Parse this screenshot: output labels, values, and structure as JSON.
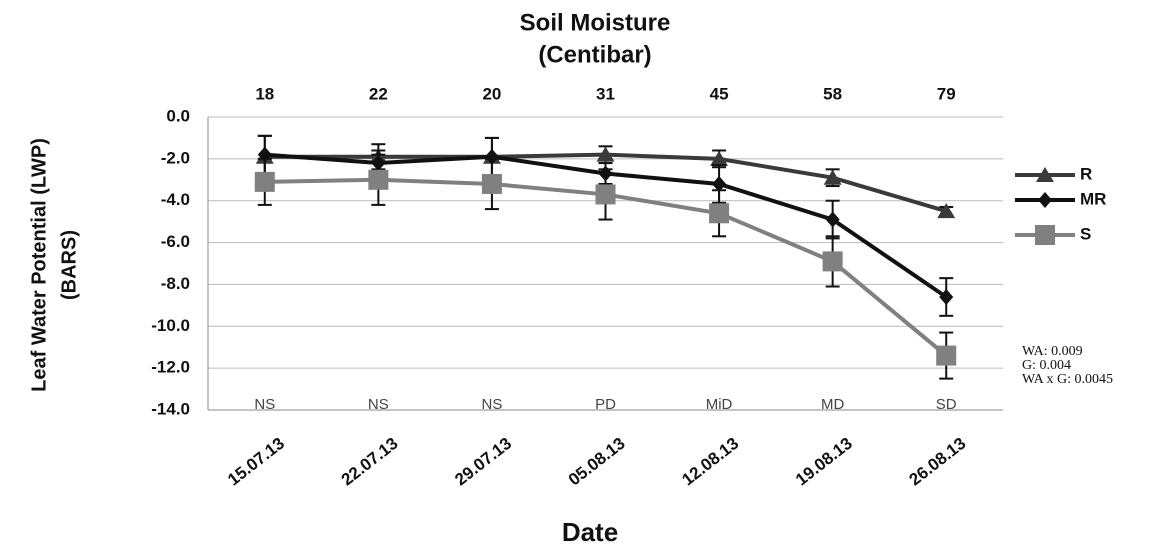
{
  "chart_data": {
    "type": "line",
    "title": "Soil Moisture",
    "subtitle": "(Centibar)",
    "x_label": "Date",
    "y_label": "Leaf Water Potential (LWP)",
    "y_label_unit": "(BARS)",
    "categories": [
      "15.07.13",
      "22.07.13",
      "29.07.13",
      "05.08.13",
      "12.08.13",
      "19.08.13",
      "26.08.13"
    ],
    "soil_moisture": [
      18,
      22,
      20,
      31,
      45,
      58,
      79
    ],
    "stages": [
      "NS",
      "NS",
      "NS",
      "PD",
      "MiD",
      "MD",
      "SD"
    ],
    "series": [
      {
        "name": "R",
        "color": "#3a3a3a",
        "marker": "triangle",
        "values": [
          -1.9,
          -1.9,
          -1.9,
          -1.8,
          -2.0,
          -2.9,
          -4.5
        ],
        "errors": [
          1.0,
          0.6,
          0.9,
          0.4,
          0.4,
          0.4,
          0.2
        ]
      },
      {
        "name": "MR",
        "color": "#111111",
        "marker": "diamond",
        "values": [
          -1.8,
          -2.2,
          -1.9,
          -2.7,
          -3.2,
          -4.9,
          -8.6
        ],
        "errors": [
          0.9,
          0.6,
          0.9,
          0.5,
          0.9,
          0.9,
          0.9
        ]
      },
      {
        "name": "S",
        "color": "#808080",
        "marker": "square",
        "values": [
          -3.1,
          -3.0,
          -3.2,
          -3.7,
          -4.6,
          -6.9,
          -11.4
        ],
        "errors": [
          1.1,
          1.2,
          1.2,
          1.2,
          1.1,
          1.2,
          1.1
        ]
      }
    ],
    "error_color": "#111111",
    "ylim": [
      -14.0,
      0.0
    ],
    "yticks": [
      {
        "value": 0,
        "label": "0.0"
      },
      {
        "value": -2,
        "label": "-2.0"
      },
      {
        "value": -4,
        "label": "-4.0"
      },
      {
        "value": -6,
        "label": "-6.0"
      },
      {
        "value": -8,
        "label": "-8.0"
      },
      {
        "value": -10,
        "label": "-10.0"
      },
      {
        "value": -12,
        "label": "-12.0"
      },
      {
        "value": -14,
        "label": "-14.0"
      }
    ],
    "grid": true,
    "stats": [
      "WA: 0.009",
      "G: 0.004",
      "WA x G: 0.0045"
    ]
  }
}
